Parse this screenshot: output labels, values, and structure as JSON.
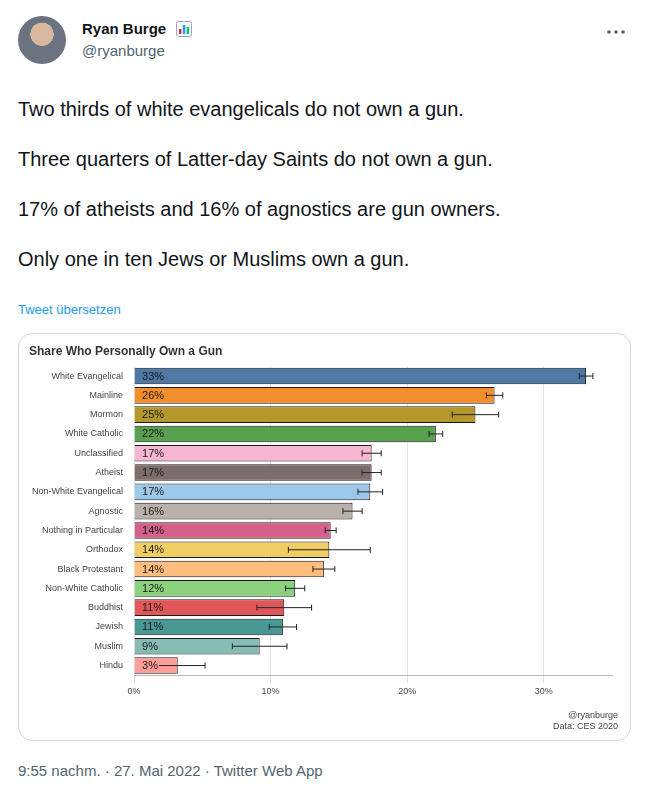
{
  "tweet": {
    "name": "Ryan Burge",
    "handle": "@ryanburge",
    "text": [
      "Two thirds of white evangelicals do not own a gun.",
      "Three quarters of Latter-day Saints do not own a gun.",
      "17% of atheists and 16% of agnostics are gun owners.",
      "Only one in ten Jews or Muslims own a gun."
    ],
    "translate": "Tweet übersetzen",
    "timestamp": "9:55 nachm. · 27. Mai 2022 · Twitter Web App"
  },
  "chart_data": {
    "type": "bar",
    "orientation": "horizontal",
    "title": "Share Who Personally Own a Gun",
    "categories": [
      "White Evangelical",
      "Mainline",
      "Mormon",
      "White Catholic",
      "Unclassified",
      "Atheist",
      "Non-White Evangelical",
      "Agnostic",
      "Nothing in Particular",
      "Orthodox",
      "Black Protestant",
      "Non-White Catholic",
      "Buddhist",
      "Jewish",
      "Muslim",
      "Hindu"
    ],
    "values": [
      33.1,
      26.4,
      25.0,
      22.1,
      17.4,
      17.4,
      17.3,
      16.0,
      14.4,
      14.3,
      13.9,
      11.8,
      11.0,
      10.9,
      9.2,
      3.2
    ],
    "value_labels": [
      "33%",
      "26%",
      "25%",
      "22%",
      "17%",
      "17%",
      "17%",
      "16%",
      "14%",
      "14%",
      "14%",
      "12%",
      "11%",
      "11%",
      "9%",
      "3%"
    ],
    "errors": [
      0.5,
      0.6,
      1.7,
      0.5,
      0.7,
      0.7,
      0.9,
      0.7,
      0.4,
      3.0,
      0.8,
      0.7,
      2.0,
      1.0,
      2.0,
      2.0
    ],
    "colors": [
      "#4e79a7",
      "#f28e2b",
      "#b5982c",
      "#59a14f",
      "#f7b6d2",
      "#7d6e6b",
      "#9dc8ea",
      "#bab0ac",
      "#d4608b",
      "#f1ce63",
      "#ffbe7d",
      "#8cd17d",
      "#e15759",
      "#499894",
      "#86bcb6",
      "#ff9d9a"
    ],
    "xlim": [
      0,
      35
    ],
    "xticks": [
      {
        "value": 0,
        "label": "0%"
      },
      {
        "value": 10,
        "label": "10%"
      },
      {
        "value": 20,
        "label": "20%"
      },
      {
        "value": 30,
        "label": "30%"
      }
    ],
    "grid": true,
    "data_labels": true,
    "annotations": [
      "@ryanburge",
      "Data: CES 2020"
    ]
  }
}
